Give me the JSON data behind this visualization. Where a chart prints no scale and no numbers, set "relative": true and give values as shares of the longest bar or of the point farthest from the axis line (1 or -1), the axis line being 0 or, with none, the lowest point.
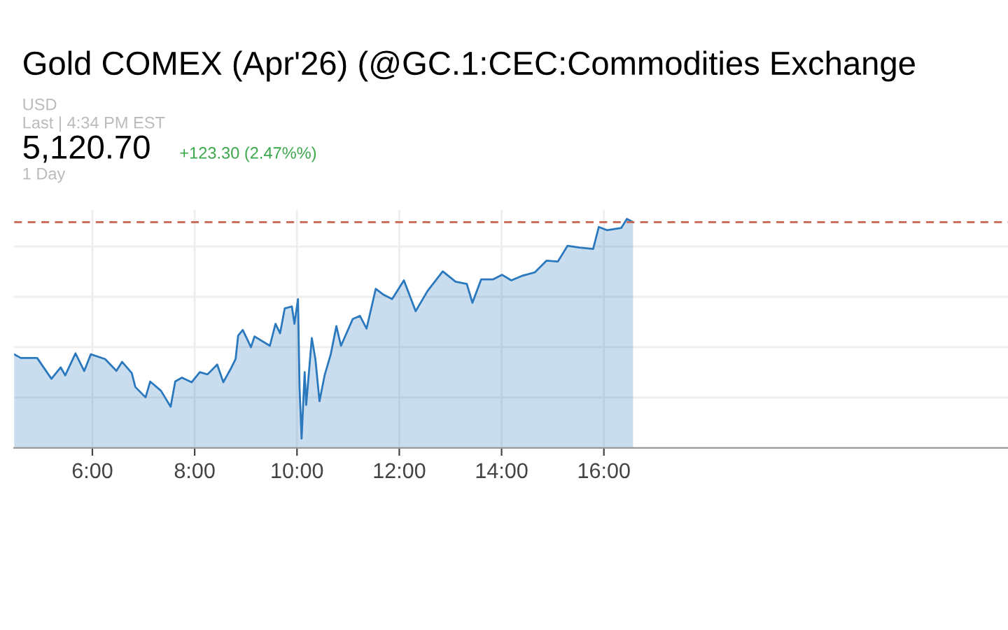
{
  "chart_data": {
    "type": "area",
    "title": "Gold COMEX (Apr'26) (@GC.1:CEC:Commodities Exchange",
    "annotations": [
      "USD",
      "Last | 4:34 PM EST",
      "5,120.70",
      "+123.30 (2.47%%)",
      "1 Day"
    ],
    "relative": true,
    "x": [
      4.47,
      4.6,
      4.92,
      5.2,
      5.38,
      5.47,
      5.67,
      5.84,
      5.97,
      6.25,
      6.47,
      6.58,
      6.77,
      6.84,
      7.04,
      7.13,
      7.34,
      7.53,
      7.62,
      7.75,
      7.94,
      8.1,
      8.25,
      8.44,
      8.56,
      8.71,
      8.8,
      8.85,
      8.94,
      9.1,
      9.17,
      9.47,
      9.58,
      9.67,
      9.76,
      9.9,
      9.95,
      10.02,
      10.05,
      10.09,
      10.15,
      10.18,
      10.29,
      10.36,
      10.44,
      10.54,
      10.66,
      10.77,
      10.86,
      11.09,
      11.23,
      11.36,
      11.54,
      11.68,
      11.86,
      12.09,
      12.32,
      12.55,
      12.85,
      13.1,
      13.32,
      13.43,
      13.6,
      13.83,
      14.01,
      14.19,
      14.42,
      14.65,
      14.88,
      15.1,
      15.29,
      15.52,
      15.79,
      15.9,
      16.06,
      16.34,
      16.45,
      16.57
    ],
    "series": [
      {
        "color": "#2a78bd",
        "values": [
          0.409,
          0.393,
          0.393,
          0.302,
          0.352,
          0.317,
          0.413,
          0.336,
          0.409,
          0.388,
          0.337,
          0.376,
          0.327,
          0.266,
          0.221,
          0.29,
          0.25,
          0.18,
          0.29,
          0.307,
          0.287,
          0.331,
          0.321,
          0.364,
          0.287,
          0.348,
          0.388,
          0.491,
          0.515,
          0.44,
          0.487,
          0.446,
          0.542,
          0.501,
          0.609,
          0.618,
          0.542,
          0.65,
          0.266,
          0.041,
          0.331,
          0.188,
          0.48,
          0.388,
          0.204,
          0.317,
          0.409,
          0.532,
          0.446,
          0.563,
          0.577,
          0.521,
          0.695,
          0.671,
          0.65,
          0.732,
          0.597,
          0.685,
          0.771,
          0.726,
          0.716,
          0.634,
          0.736,
          0.736,
          0.756,
          0.732,
          0.753,
          0.767,
          0.818,
          0.814,
          0.883,
          0.875,
          0.869,
          0.965,
          0.951,
          0.961,
          1.0,
          0.986
        ]
      }
    ],
    "xlim": [
      4.47,
      23.9
    ],
    "xticks": [
      {
        "value": 6,
        "label": "6:00"
      },
      {
        "value": 8,
        "label": "8:00"
      },
      {
        "value": 10,
        "label": "10:00"
      },
      {
        "value": 12,
        "label": "12:00"
      },
      {
        "value": 14,
        "label": "14:00"
      },
      {
        "value": 16,
        "label": "16:00"
      }
    ],
    "ref_lines": [
      {
        "axis": "y",
        "value": 0.986,
        "color": "#c8644f",
        "line_style": "dashed"
      }
    ],
    "grid": true,
    "tick_labels": "x"
  }
}
